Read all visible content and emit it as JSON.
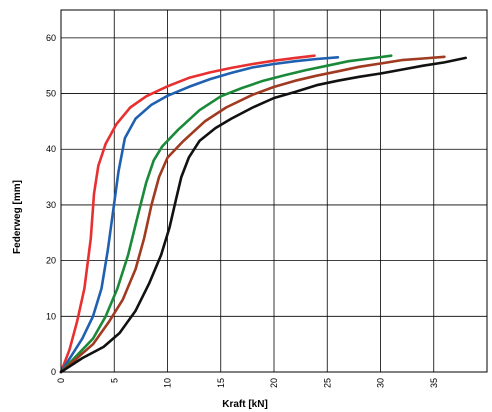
{
  "chart_data": {
    "type": "line",
    "title": "",
    "xlabel": "Kraft  [kN]",
    "ylabel": "Federweg [mm]",
    "xlim": [
      0,
      40
    ],
    "ylim": [
      0,
      65
    ],
    "x_ticks": [
      "0",
      "5",
      "10",
      "15",
      "20",
      "25",
      "30",
      "35"
    ],
    "y_ticks": [
      "0",
      "10",
      "20",
      "30",
      "40",
      "50",
      "60"
    ],
    "grid": true,
    "legend": "none",
    "series": [
      {
        "color": "#e83030",
        "points": [
          [
            0,
            0
          ],
          [
            0.8,
            4
          ],
          [
            1.5,
            9
          ],
          [
            2.2,
            15
          ],
          [
            2.8,
            24
          ],
          [
            3.1,
            32
          ],
          [
            3.5,
            37
          ],
          [
            4.2,
            41
          ],
          [
            5.2,
            44.5
          ],
          [
            6.5,
            47.5
          ],
          [
            8,
            49.5
          ],
          [
            10,
            51.3
          ],
          [
            12,
            52.8
          ],
          [
            14,
            53.8
          ],
          [
            16,
            54.6
          ],
          [
            18,
            55.3
          ],
          [
            20,
            55.9
          ],
          [
            22,
            56.4
          ],
          [
            23.8,
            56.8
          ]
        ]
      },
      {
        "color": "#2060b0",
        "points": [
          [
            0,
            0
          ],
          [
            1,
            3
          ],
          [
            2,
            6
          ],
          [
            3,
            10
          ],
          [
            3.8,
            15
          ],
          [
            4.4,
            22
          ],
          [
            4.9,
            29
          ],
          [
            5.4,
            36
          ],
          [
            6,
            42
          ],
          [
            7,
            45.5
          ],
          [
            8.5,
            48
          ],
          [
            10,
            49.6
          ],
          [
            12,
            51.2
          ],
          [
            14,
            52.6
          ],
          [
            16,
            53.7
          ],
          [
            18,
            54.7
          ],
          [
            20,
            55.3
          ],
          [
            22,
            55.8
          ],
          [
            24,
            56.2
          ],
          [
            26,
            56.5
          ]
        ]
      },
      {
        "color": "#1a8a3a",
        "points": [
          [
            0,
            0
          ],
          [
            1.5,
            3
          ],
          [
            3,
            6
          ],
          [
            4.2,
            10
          ],
          [
            5.3,
            15
          ],
          [
            6.3,
            21
          ],
          [
            7.2,
            28
          ],
          [
            8,
            34
          ],
          [
            8.7,
            38
          ],
          [
            9.5,
            40.5
          ],
          [
            11,
            43.5
          ],
          [
            13,
            47
          ],
          [
            15,
            49.5
          ],
          [
            17,
            51
          ],
          [
            19,
            52.3
          ],
          [
            21,
            53.3
          ],
          [
            23,
            54.2
          ],
          [
            25,
            55
          ],
          [
            27,
            55.8
          ],
          [
            29,
            56.3
          ],
          [
            31,
            56.8
          ]
        ]
      },
      {
        "color": "#a03a20",
        "points": [
          [
            0,
            0
          ],
          [
            1.5,
            2.5
          ],
          [
            3,
            5
          ],
          [
            4.5,
            9
          ],
          [
            5.8,
            13
          ],
          [
            7,
            18.5
          ],
          [
            7.8,
            24
          ],
          [
            8.5,
            30
          ],
          [
            9.2,
            35
          ],
          [
            10,
            38.5
          ],
          [
            11.5,
            41.5
          ],
          [
            13.5,
            45
          ],
          [
            15.5,
            47.5
          ],
          [
            18,
            49.8
          ],
          [
            20,
            51.2
          ],
          [
            22,
            52.3
          ],
          [
            24,
            53.2
          ],
          [
            26,
            54
          ],
          [
            28,
            54.8
          ],
          [
            30,
            55.4
          ],
          [
            32,
            56
          ],
          [
            34,
            56.3
          ],
          [
            36,
            56.6
          ]
        ]
      },
      {
        "color": "#111111",
        "points": [
          [
            0,
            0
          ],
          [
            2,
            2.5
          ],
          [
            4,
            4.5
          ],
          [
            5.5,
            7
          ],
          [
            7,
            11
          ],
          [
            8.3,
            16
          ],
          [
            9.4,
            21
          ],
          [
            10.2,
            26
          ],
          [
            10.8,
            31
          ],
          [
            11.3,
            35
          ],
          [
            12,
            38.5
          ],
          [
            13,
            41.5
          ],
          [
            14.5,
            43.8
          ],
          [
            16,
            45.5
          ],
          [
            18,
            47.5
          ],
          [
            20,
            49.2
          ],
          [
            22,
            50.3
          ],
          [
            24,
            51.5
          ],
          [
            26,
            52.3
          ],
          [
            28,
            53
          ],
          [
            30,
            53.6
          ],
          [
            32,
            54.3
          ],
          [
            34,
            55
          ],
          [
            36,
            55.6
          ],
          [
            38,
            56.4
          ]
        ]
      }
    ]
  }
}
